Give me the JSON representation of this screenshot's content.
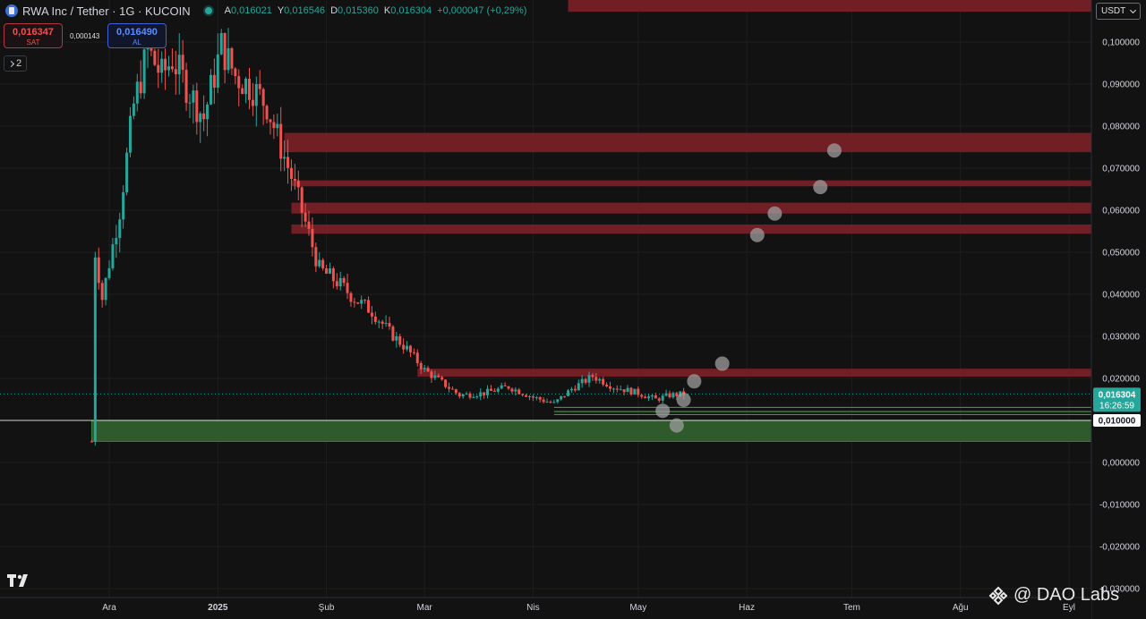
{
  "header": {
    "title": "RWA Inc / Tether · 1G · KUCOIN",
    "o_label": "A",
    "o_value": "0,016021",
    "h_label": "Y",
    "h_value": "0,016546",
    "l_label": "D",
    "l_value": "0,015360",
    "c_label": "K",
    "c_value": "0,016304",
    "change": "+0,000047 (+0,29%)"
  },
  "trade": {
    "sell_price": "0,016347",
    "sell_label": "SAT",
    "spread": "0,000143",
    "buy_price": "0,016490",
    "buy_label": "AL"
  },
  "indicators": {
    "count": "2"
  },
  "currency": {
    "label": "USDT"
  },
  "watermark": {
    "text": "@ DAO Labs"
  },
  "colors": {
    "background": "#121212",
    "up": "#26a69a",
    "down": "#ef5350",
    "resistance_zone": "#7a1f27",
    "support_zone": "#2e5a2c",
    "circle": "#9e9e9e"
  },
  "chart_data": {
    "type": "candlestick",
    "y_axis": {
      "ticks": [
        0.1,
        0.09,
        0.08,
        0.07,
        0.06,
        0.05,
        0.04,
        0.03,
        0.02,
        0.01,
        0.0,
        -0.01,
        -0.02,
        -0.03
      ],
      "tick_labels": [
        "0,100000",
        "0,090000",
        "0,080000",
        "0,070000",
        "0,060000",
        "0,050000",
        "0,040000",
        "0,030000",
        "0,020000",
        "0,010000",
        "0,000000",
        "-0,010000",
        "-0,020000",
        "-0,030000"
      ],
      "range": [
        -0.03,
        0.1
      ],
      "position": "right"
    },
    "x_axis": {
      "labels": [
        "Ara",
        "2025",
        "Şub",
        "Mar",
        "Nis",
        "May",
        "Haz",
        "Tem",
        "Ağu",
        "Eyl"
      ],
      "dates": [
        "2024-12-01",
        "2025-01-01",
        "2025-02-01",
        "2025-03-01",
        "2025-04-01",
        "2025-05-01",
        "2025-06-01",
        "2025-07-01",
        "2025-08-01",
        "2025-09-01"
      ]
    },
    "last_price": {
      "value": 0.016304,
      "label": "0,016304",
      "countdown": "16:26:59"
    },
    "highlight_level": {
      "value": 0.01,
      "label": "0,010000"
    },
    "price_path": [
      [
        "2024-11-26",
        0.005
      ],
      [
        "2024-11-27",
        0.05
      ],
      [
        "2024-11-29",
        0.039
      ],
      [
        "2024-12-04",
        0.06
      ],
      [
        "2024-12-08",
        0.085
      ],
      [
        "2024-12-12",
        0.098
      ],
      [
        "2024-12-16",
        0.092
      ],
      [
        "2024-12-19",
        0.096
      ],
      [
        "2024-12-24",
        0.088
      ],
      [
        "2024-12-28",
        0.082
      ],
      [
        "2025-01-02",
        0.099
      ],
      [
        "2025-01-06",
        0.092
      ],
      [
        "2025-01-11",
        0.089
      ],
      [
        "2025-01-15",
        0.085
      ],
      [
        "2025-01-19",
        0.075
      ],
      [
        "2025-01-22",
        0.068
      ],
      [
        "2025-01-26",
        0.057
      ],
      [
        "2025-01-30",
        0.046
      ],
      [
        "2025-02-04",
        0.043
      ],
      [
        "2025-02-09",
        0.039
      ],
      [
        "2025-02-14",
        0.036
      ],
      [
        "2025-02-19",
        0.031
      ],
      [
        "2025-02-24",
        0.027
      ],
      [
        "2025-03-01",
        0.022
      ],
      [
        "2025-03-06",
        0.019
      ],
      [
        "2025-03-11",
        0.016
      ],
      [
        "2025-03-18",
        0.0165
      ],
      [
        "2025-03-25",
        0.018
      ],
      [
        "2025-04-01",
        0.0155
      ],
      [
        "2025-04-07",
        0.014
      ],
      [
        "2025-04-12",
        0.0175
      ],
      [
        "2025-04-18",
        0.0205
      ],
      [
        "2025-04-24",
        0.018
      ],
      [
        "2025-05-01",
        0.0165
      ],
      [
        "2025-05-06",
        0.015
      ],
      [
        "2025-05-10",
        0.016
      ],
      [
        "2025-05-14",
        0.0163
      ]
    ],
    "resistance_zones": [
      {
        "low": 0.1072,
        "high": 0.1107,
        "start": "2025-04-11",
        "end": "2025-09-20"
      },
      {
        "low": 0.0738,
        "high": 0.0784,
        "start": "2025-01-20",
        "end": "2025-09-20"
      },
      {
        "low": 0.0657,
        "high": 0.0671,
        "start": "2025-01-22",
        "end": "2025-09-20"
      },
      {
        "low": 0.0592,
        "high": 0.0618,
        "start": "2025-01-22",
        "end": "2025-09-20"
      },
      {
        "low": 0.0544,
        "high": 0.0566,
        "start": "2025-01-22",
        "end": "2025-09-20"
      },
      {
        "low": 0.0204,
        "high": 0.0223,
        "start": "2025-02-27",
        "end": "2025-09-20"
      }
    ],
    "support_zones": [
      {
        "low": 0.005,
        "high": 0.01,
        "start": "2024-11-26",
        "end": "2025-09-20"
      }
    ],
    "support_lines": [
      {
        "value": 0.0131,
        "start": "2025-04-07",
        "end": "2025-09-20"
      },
      {
        "value": 0.0121,
        "start": "2025-04-07",
        "end": "2025-09-20"
      },
      {
        "value": 0.0114,
        "start": "2025-04-07",
        "end": "2025-09-20"
      }
    ],
    "markers": [
      {
        "x": "2025-06-26",
        "y": 0.0742
      },
      {
        "x": "2025-06-22",
        "y": 0.0655
      },
      {
        "x": "2025-06-09",
        "y": 0.0592
      },
      {
        "x": "2025-06-04",
        "y": 0.0541
      },
      {
        "x": "2025-05-25",
        "y": 0.0235
      },
      {
        "x": "2025-05-17",
        "y": 0.0193
      },
      {
        "x": "2025-05-14",
        "y": 0.0149
      },
      {
        "x": "2025-05-08",
        "y": 0.0123
      },
      {
        "x": "2025-05-12",
        "y": 0.0088
      }
    ]
  }
}
